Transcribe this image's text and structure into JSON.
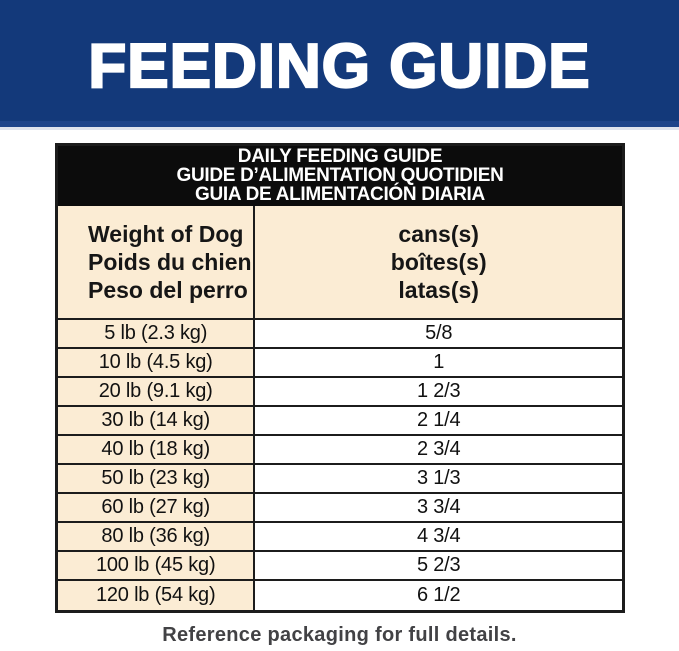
{
  "banner": {
    "title": "FEEDING GUIDE",
    "bg_color": "#13397a",
    "strip_color": "#1e4389",
    "text_color": "#ffffff"
  },
  "table": {
    "title_lines": [
      "DAILY FEEDING GUIDE",
      "GUIDE D’ALIMENTATION QUOTIDIEN",
      "GUIA DE ALIMENTACIÓN DIARIA"
    ],
    "weight_header_lines": [
      "Weight of Dog",
      "Poids du chien",
      "Peso del perro"
    ],
    "cans_header_lines": [
      "cans(s)",
      "boîtes(s)",
      "latas(s)"
    ],
    "rows": [
      {
        "weight": "5 lb (2.3 kg)",
        "cans": "5/8"
      },
      {
        "weight": "10 lb (4.5 kg)",
        "cans": "1"
      },
      {
        "weight": "20 lb (9.1 kg)",
        "cans": "1 2/3"
      },
      {
        "weight": "30 lb (14 kg)",
        "cans": "2 1/4"
      },
      {
        "weight": "40 lb (18 kg)",
        "cans": "2 3/4"
      },
      {
        "weight": "50 lb (23 kg)",
        "cans": "3 1/3"
      },
      {
        "weight": "60 lb (27 kg)",
        "cans": "3 3/4"
      },
      {
        "weight": "80 lb (36 kg)",
        "cans": "4 3/4"
      },
      {
        "weight": "100 lb (45 kg)",
        "cans": "5 2/3"
      },
      {
        "weight": "120 lb (54 kg)",
        "cans": "6 1/2"
      }
    ],
    "cream_color": "#fbecd4",
    "header_bg_color": "#0c0c0c",
    "border_color": "#1c1c1c"
  },
  "footer": {
    "text": "Reference packaging for full details."
  }
}
